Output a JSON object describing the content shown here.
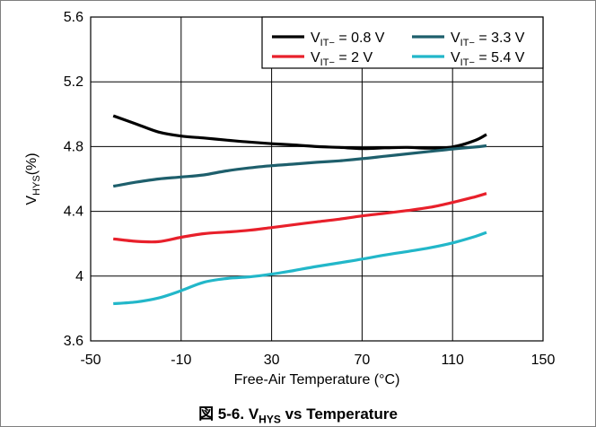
{
  "chart_data": {
    "type": "line",
    "title": "",
    "xlabel": "Free-Air Temperature (°C)",
    "ylabel": {
      "main": "V",
      "sub": "HYS",
      "unit": "(%)"
    },
    "xlim": [
      -50,
      150
    ],
    "ylim": [
      3.6,
      5.6
    ],
    "x_ticks": [
      -50,
      -10,
      30,
      70,
      110,
      150
    ],
    "y_ticks": [
      3.6,
      4,
      4.4,
      4.8,
      5.2,
      5.6
    ],
    "x_tick_labels": [
      "-50",
      "-10",
      "30",
      "70",
      "110",
      "150"
    ],
    "y_tick_labels": [
      "3.6",
      "4",
      "4.4",
      "4.8",
      "5.2",
      "5.6"
    ],
    "x_grid": [
      -10,
      30,
      70,
      110
    ],
    "y_grid": [
      4,
      4.4,
      4.8,
      5.2
    ],
    "grid": true,
    "legend_position": "top-right",
    "series": [
      {
        "name": "0.8 V",
        "label_main": "V",
        "label_sub": "IT−",
        "label_value": " = 0.8 V",
        "color": "#000000",
        "x": [
          -40,
          -30,
          -20,
          -10,
          0,
          10,
          20,
          30,
          40,
          50,
          60,
          70,
          80,
          90,
          100,
          110,
          120,
          125
        ],
        "y": [
          4.99,
          4.94,
          4.89,
          4.865,
          4.853,
          4.84,
          4.828,
          4.818,
          4.81,
          4.8,
          4.795,
          4.788,
          4.792,
          4.795,
          4.79,
          4.798,
          4.838,
          4.875
        ]
      },
      {
        "name": "3.3 V",
        "label_main": "V",
        "label_sub": "IT−",
        "label_value": " = 3.3 V",
        "color": "#1e5f6c",
        "x": [
          -40,
          -30,
          -20,
          -10,
          0,
          10,
          20,
          30,
          40,
          50,
          60,
          70,
          80,
          90,
          100,
          110,
          120,
          125
        ],
        "y": [
          4.555,
          4.58,
          4.6,
          4.612,
          4.625,
          4.65,
          4.668,
          4.682,
          4.692,
          4.703,
          4.712,
          4.725,
          4.74,
          4.755,
          4.77,
          4.785,
          4.797,
          4.805
        ]
      },
      {
        "name": "2 V",
        "label_main": "V",
        "label_sub": "IT−",
        "label_value": " = 2 V",
        "color": "#e8202b",
        "x": [
          -40,
          -30,
          -20,
          -10,
          0,
          10,
          20,
          30,
          40,
          50,
          60,
          70,
          80,
          90,
          100,
          110,
          120,
          125
        ],
        "y": [
          4.23,
          4.215,
          4.213,
          4.24,
          4.262,
          4.272,
          4.283,
          4.3,
          4.318,
          4.335,
          4.352,
          4.372,
          4.388,
          4.405,
          4.425,
          4.455,
          4.49,
          4.51
        ]
      },
      {
        "name": "5.4 V",
        "label_main": "V",
        "label_sub": "IT−",
        "label_value": " = 5.4 V",
        "color": "#22b7c9",
        "x": [
          -40,
          -30,
          -20,
          -10,
          0,
          10,
          20,
          30,
          40,
          50,
          60,
          70,
          80,
          90,
          100,
          110,
          120,
          125
        ],
        "y": [
          3.83,
          3.84,
          3.865,
          3.91,
          3.962,
          3.985,
          3.995,
          4.012,
          4.035,
          4.06,
          4.082,
          4.105,
          4.13,
          4.152,
          4.175,
          4.205,
          4.245,
          4.27
        ]
      }
    ]
  },
  "caption": {
    "prefix": "図 5-6. ",
    "main": "V",
    "sub": "HYS",
    "suffix": " vs Temperature"
  }
}
